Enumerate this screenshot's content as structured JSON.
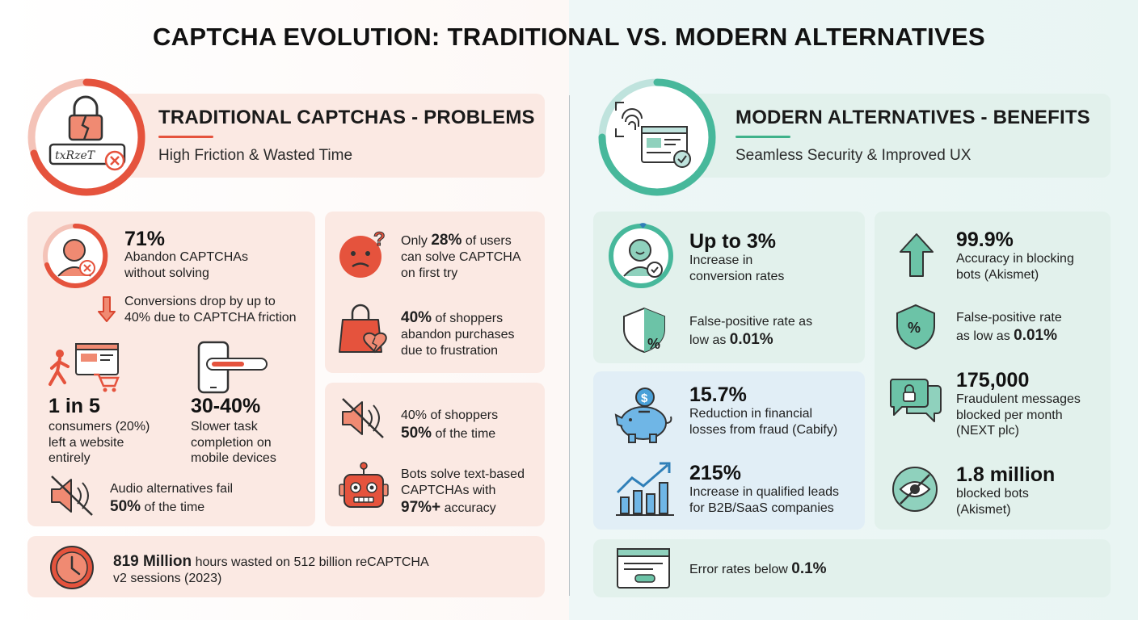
{
  "title": "CAPTCHA EVOLUTION: TRADITIONAL VS. MODERN ALTERNATIVES",
  "colors": {
    "traditional_accent": "#e5533d",
    "modern_accent": "#3fb28a",
    "modern_blue": "#2f7fb8"
  },
  "traditional": {
    "header": {
      "title": "TRADITIONAL CAPTCHAS - PROBLEMS",
      "subtitle": "High Friction & Wasted Time",
      "icon": "broken-lock-captcha-icon",
      "captcha_text": "txRzeT"
    },
    "stats": {
      "abandon": {
        "value": "71%",
        "line1": "Abandon CAPTCHAs",
        "line2": "without solving",
        "icon": "frustrated-user-icon"
      },
      "conversions": {
        "line1": "Conversions drop by up to",
        "line2": "40% due to CAPTCHA friction",
        "icon": "arrow-down-icon"
      },
      "left_site": {
        "value": "1 in 5",
        "line1": "consumers (20%)",
        "line2": "left a website",
        "line3": "entirely",
        "icon": "user-leaving-cart-icon"
      },
      "mobile": {
        "value": "30-40%",
        "line1": "Slower task",
        "line2": "completion on",
        "line3": "mobile devices",
        "icon": "mobile-slider-icon"
      },
      "audio_fail": {
        "line1": "Audio alternatives fail",
        "emph": "50%",
        "line2_rest": " of the time",
        "icon": "muted-speaker-icon"
      },
      "first_try": {
        "pre": "Only ",
        "emph": "28%",
        "line1_rest": " of users",
        "line2": "can solve CAPTCHA",
        "line3": "on first try",
        "icon": "confused-face-icon"
      },
      "shoppers_abandon": {
        "emph": "40%",
        "line1_rest": " of shoppers",
        "line2": "abandon purchases",
        "line3": "due to frustration",
        "icon": "broken-heart-bag-icon"
      },
      "shoppers_time": {
        "line1": "40% of shoppers",
        "emph": "50%",
        "line2_rest": " of the time",
        "icon": "muted-speaker-icon"
      },
      "bots": {
        "line1": "Bots solve text-based",
        "line2": "CAPTCHAs with",
        "emph": "97%+",
        "line3_rest": " accuracy",
        "icon": "robot-icon"
      },
      "hours": {
        "emph": "819 Million",
        "line1_rest": " hours wasted on 512 billion reCAPTCHA",
        "line2": "v2 sessions (2023)",
        "icon": "clock-icon"
      }
    }
  },
  "modern": {
    "header": {
      "title": "MODERN ALTERNATIVES - BENEFITS",
      "subtitle": "Seamless Security & Improved UX",
      "icon": "fingerprint-verified-window-icon"
    },
    "stats": {
      "conversion": {
        "value": "Up to 3%",
        "line1": "Increase in",
        "line2": "conversion rates",
        "icon": "happy-user-check-icon"
      },
      "false_pos_1": {
        "line1": "False-positive rate as",
        "pre": "low as ",
        "emph": "0.01%",
        "icon": "shield-percent-icon"
      },
      "fraud": {
        "value": "15.7%",
        "line1": "Reduction in financial",
        "line2": "losses from fraud (Cabify)",
        "icon": "piggy-bank-icon"
      },
      "leads": {
        "value": "215%",
        "line1": "Increase in qualified leads",
        "line2": "for B2B/SaaS companies",
        "icon": "growth-chart-icon"
      },
      "accuracy": {
        "value": "99.9%",
        "line1": "Accuracy in blocking",
        "line2": "bots (Akismet)",
        "icon": "arrow-up-icon"
      },
      "false_pos_2": {
        "line1": "False-positive rate",
        "pre": "as low as ",
        "emph": "0.01%",
        "icon": "shield-percent-icon"
      },
      "messages": {
        "value": "175,000",
        "line1": "Fraudulent messages",
        "line2": "blocked per month",
        "line3": "(NEXT plc)",
        "icon": "locked-chat-icon"
      },
      "blocked_bots": {
        "value": "1.8 million",
        "line1": "blocked bots",
        "line2": "(Akismet)",
        "icon": "eye-slash-icon"
      },
      "errors": {
        "pre": "Error rates below ",
        "emph": "0.1%",
        "icon": "browser-window-icon"
      }
    }
  }
}
